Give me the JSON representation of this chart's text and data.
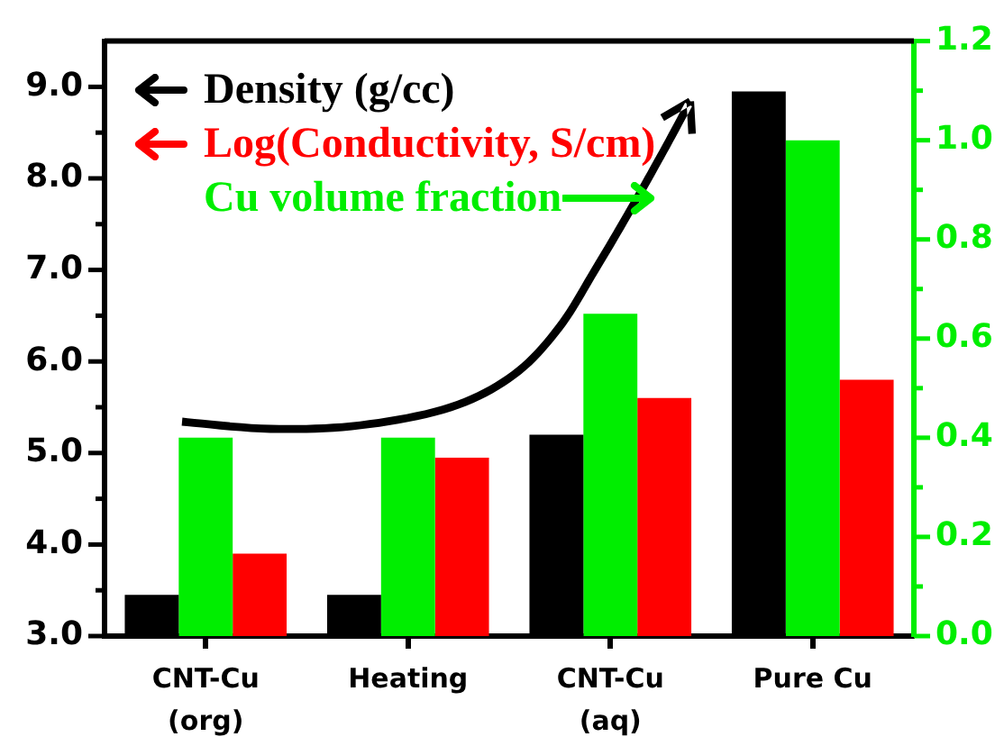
{
  "chart_data": {
    "type": "bar",
    "categories": [
      "CNT-Cu\n(org)",
      "Heating",
      "CNT-Cu\n(aq)",
      "Pure Cu"
    ],
    "series": [
      {
        "name": "Density (g/cc)",
        "color": "#000000",
        "values": [
          3.45,
          3.45,
          5.2,
          8.95
        ]
      },
      {
        "name": "Cu volume fraction",
        "color": "#00ee00",
        "values": [
          0.4,
          0.4,
          0.65,
          1.0
        ],
        "axis": "y2"
      },
      {
        "name": "Log(Conductivity, S/cm)",
        "color": "#ff0000",
        "values": [
          3.9,
          4.95,
          5.6,
          5.8
        ]
      }
    ],
    "ylim": [
      3,
      9.5
    ],
    "yticks": [
      {
        "value": 3,
        "label": "3.0"
      },
      {
        "value": 3.5,
        "label": null
      },
      {
        "value": 4,
        "label": "4.0"
      },
      {
        "value": 4.5,
        "label": null
      },
      {
        "value": 5,
        "label": "5.0"
      },
      {
        "value": 5.5,
        "label": null
      },
      {
        "value": 6,
        "label": "6.0"
      },
      {
        "value": 6.5,
        "label": null
      },
      {
        "value": 7,
        "label": "7.0"
      },
      {
        "value": 7.5,
        "label": null
      },
      {
        "value": 8,
        "label": "8.0"
      },
      {
        "value": 8.5,
        "label": null
      },
      {
        "value": 9,
        "label": "9.0"
      }
    ],
    "y2lim": [
      0,
      1.2
    ],
    "y2ticks": [
      {
        "value": 0,
        "label": "0.0"
      },
      {
        "value": 0.1,
        "label": null
      },
      {
        "value": 0.2,
        "label": "0.2"
      },
      {
        "value": 0.3,
        "label": null
      },
      {
        "value": 0.4,
        "label": "0.4"
      },
      {
        "value": 0.5,
        "label": null
      },
      {
        "value": 0.6,
        "label": "0.6"
      },
      {
        "value": 0.7,
        "label": null
      },
      {
        "value": 0.8,
        "label": "0.8"
      },
      {
        "value": 0.9,
        "label": null
      },
      {
        "value": 1.0,
        "label": "1.0"
      },
      {
        "value": 1.1,
        "label": null
      },
      {
        "value": 1.2,
        "label": "1.2"
      }
    ],
    "legend": "top left"
  }
}
